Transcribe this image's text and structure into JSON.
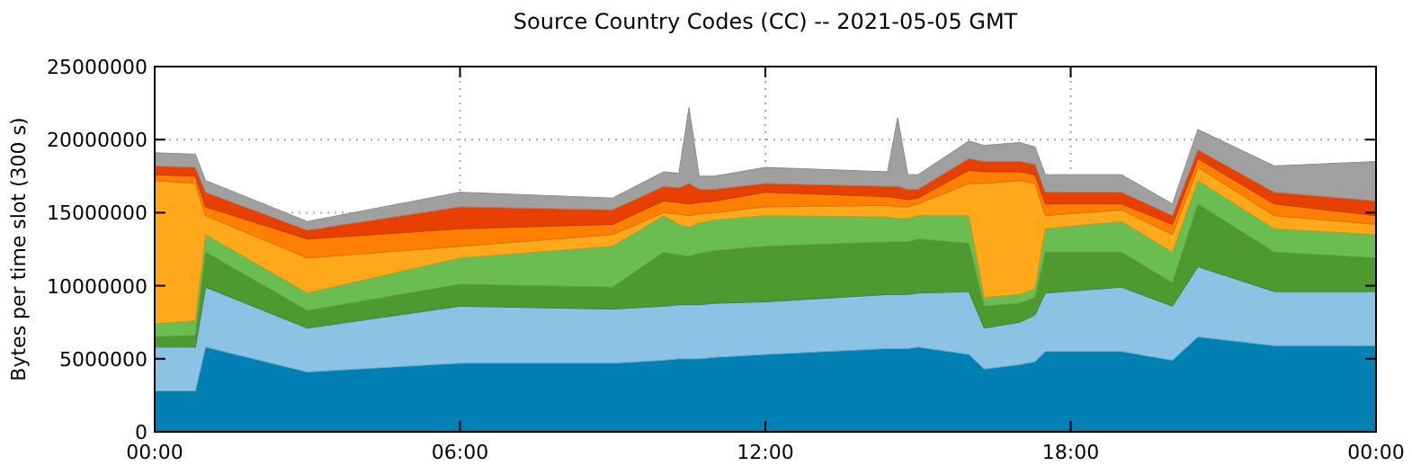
{
  "chart_data": {
    "type": "area",
    "stacked": true,
    "title": "Source Country Codes (CC) -- 2021-05-05 GMT",
    "ylabel": "Bytes per time slot (300 s)",
    "x": [
      0,
      0.8,
      1,
      3,
      6,
      9,
      10,
      10.3,
      10.5,
      10.7,
      11,
      12,
      14.4,
      14.6,
      14.8,
      15,
      16,
      16.3,
      17,
      17.3,
      17.5,
      19,
      20,
      20.5,
      22,
      24
    ],
    "xlim": [
      0,
      24
    ],
    "xticks": [
      {
        "value": 0,
        "label": "00:00"
      },
      {
        "value": 6,
        "label": "06:00"
      },
      {
        "value": 12,
        "label": "12:00"
      },
      {
        "value": 18,
        "label": "18:00"
      },
      {
        "value": 24,
        "label": "00:00"
      }
    ],
    "ylim": [
      0,
      25000000
    ],
    "yticks": [
      0,
      5000000,
      10000000,
      15000000,
      20000000,
      25000000
    ],
    "grid": true,
    "series": [
      {
        "color": "#0080b3",
        "values": [
          2800000,
          2800000,
          5800000,
          4100000,
          4700000,
          4700000,
          4900000,
          5000000,
          5000000,
          5000000,
          5100000,
          5300000,
          5700000,
          5700000,
          5700000,
          5800000,
          5300000,
          4300000,
          4600000,
          4800000,
          5500000,
          5500000,
          4900000,
          6500000,
          5900000,
          5900000
        ]
      },
      {
        "color": "#8cc2e3",
        "values": [
          3000000,
          3000000,
          4100000,
          3000000,
          3900000,
          3700000,
          3700000,
          3700000,
          3700000,
          3700000,
          3700000,
          3600000,
          3700000,
          3700000,
          3700000,
          3700000,
          4300000,
          2800000,
          2900000,
          3200000,
          4000000,
          4400000,
          3700000,
          4800000,
          3700000,
          3700000
        ]
      },
      {
        "color": "#4e9a2f",
        "values": [
          700000,
          800000,
          2400000,
          1200000,
          1500000,
          1500000,
          3700000,
          3400000,
          3300000,
          3500000,
          3600000,
          3800000,
          3600000,
          3600000,
          3600000,
          3700000,
          3300000,
          1500000,
          1300000,
          1200000,
          2800000,
          2400000,
          1600000,
          4300000,
          2700000,
          2300000
        ]
      },
      {
        "color": "#6abd50",
        "values": [
          900000,
          1000000,
          1200000,
          1200000,
          1800000,
          2800000,
          2500000,
          2100000,
          2000000,
          2100000,
          2100000,
          2100000,
          1700000,
          1600000,
          1600000,
          1600000,
          1900000,
          600000,
          600000,
          600000,
          1600000,
          2100000,
          2100000,
          1600000,
          1600000,
          1600000
        ]
      },
      {
        "color": "#ffa81a",
        "values": [
          9800000,
          9400000,
          1300000,
          2400000,
          800000,
          800000,
          200000,
          700000,
          800000,
          600000,
          500000,
          600000,
          800000,
          800000,
          800000,
          800000,
          2200000,
          7800000,
          7800000,
          7200000,
          900000,
          800000,
          1200000,
          900000,
          900000,
          700000
        ]
      },
      {
        "color": "#ff8000",
        "values": [
          400000,
          500000,
          600000,
          1300000,
          1200000,
          700000,
          800000,
          800000,
          800000,
          800000,
          800000,
          1000000,
          600000,
          600000,
          500000,
          400000,
          900000,
          800000,
          600000,
          600000,
          800000,
          400000,
          700000,
          600000,
          800000,
          600000
        ]
      },
      {
        "color": "#e84000",
        "values": [
          600000,
          600000,
          1000000,
          600000,
          1500000,
          1000000,
          1000000,
          1000000,
          1400000,
          900000,
          800000,
          600000,
          700000,
          800000,
          700000,
          600000,
          800000,
          700000,
          700000,
          700000,
          800000,
          800000,
          600000,
          600000,
          800000,
          1000000
        ]
      },
      {
        "color": "#a0a0a0",
        "values": [
          900000,
          900000,
          800000,
          600000,
          1000000,
          800000,
          1000000,
          1000000,
          5200000,
          900000,
          900000,
          1100000,
          1000000,
          4700000,
          1000000,
          1000000,
          1200000,
          1100000,
          1300000,
          1200000,
          1200000,
          1200000,
          800000,
          1400000,
          1800000,
          2700000
        ]
      }
    ]
  }
}
